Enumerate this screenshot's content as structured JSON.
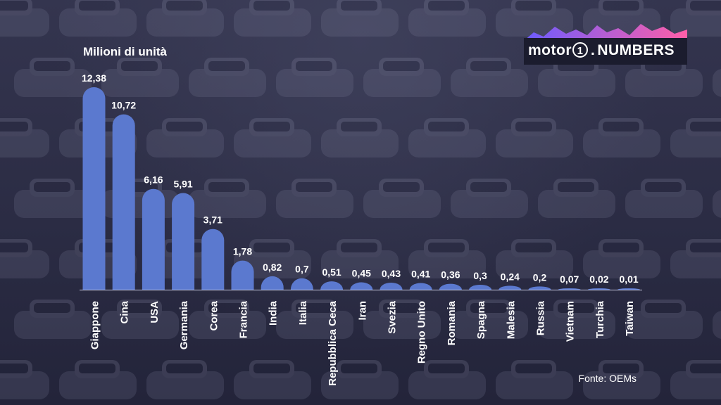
{
  "colors": {
    "bar": "#5b79cf",
    "text": "#ffffff",
    "logo_gradient": [
      "#6b5cff",
      "#ff5fa8"
    ]
  },
  "logo": {
    "brand": "motor",
    "one": "1",
    "suffix": "NUMBERS"
  },
  "source_note": "Fonte: OEMs",
  "chart_data": {
    "type": "bar",
    "ylabel": "Milioni di unità",
    "categories": [
      "Giappone",
      "Cina",
      "USA",
      "Germania",
      "Corea",
      "Francia",
      "India",
      "Italia",
      "Repubblica Ceca",
      "Iran",
      "Svezia",
      "Regno Unito",
      "Romania",
      "Spagna",
      "Malesia",
      "Russia",
      "Vietnam",
      "Turchia",
      "Taiwan"
    ],
    "values": [
      12.38,
      10.72,
      6.16,
      5.91,
      3.71,
      1.78,
      0.82,
      0.7,
      0.51,
      0.45,
      0.43,
      0.41,
      0.36,
      0.3,
      0.24,
      0.2,
      0.07,
      0.02,
      0.01
    ],
    "value_labels": [
      "12,38",
      "10,72",
      "6,16",
      "5,91",
      "3,71",
      "1,78",
      "0,82",
      "0,7",
      "0,51",
      "0,45",
      "0,43",
      "0,41",
      "0,36",
      "0,3",
      "0,24",
      "0,2",
      "0,07",
      "0,02",
      "0,01"
    ],
    "ylim": [
      0,
      12.38
    ],
    "grid": false,
    "legend": "none"
  }
}
